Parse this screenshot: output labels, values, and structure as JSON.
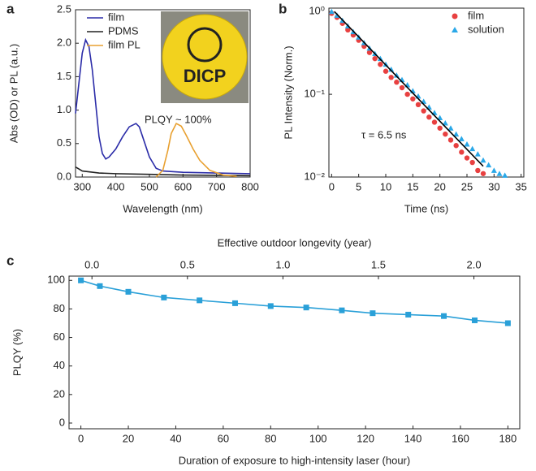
{
  "chart_data": [
    {
      "type": "line",
      "panel_label": "a",
      "x_label": "Wavelength (nm)",
      "y_label": "Abs (OD) or PL (a.u.)",
      "annotation": "PLQY ~ 100%",
      "inset_text": "DICP",
      "legend": "upper left",
      "xlim": [
        280,
        800
      ],
      "xticks": [
        300,
        400,
        500,
        600,
        700,
        800
      ],
      "ylim": [
        0,
        2.5
      ],
      "yticks": [
        {
          "value": 0,
          "label": "0.0"
        },
        0.5,
        {
          "value": 1,
          "label": "1.0"
        },
        1.5,
        {
          "value": 2,
          "label": "2.0"
        },
        2.5
      ],
      "series": [
        {
          "name": "film",
          "color": "#2b2ca8",
          "x": [
            280,
            290,
            300,
            310,
            320,
            330,
            340,
            350,
            360,
            370,
            380,
            400,
            420,
            440,
            460,
            470,
            480,
            500,
            520,
            540,
            600,
            700,
            800
          ],
          "values": [
            0.95,
            1.4,
            1.85,
            2.05,
            1.95,
            1.6,
            1.1,
            0.6,
            0.35,
            0.27,
            0.3,
            0.42,
            0.6,
            0.75,
            0.8,
            0.75,
            0.6,
            0.3,
            0.13,
            0.09,
            0.07,
            0.06,
            0.05
          ]
        },
        {
          "name": "PDMS",
          "color": "#222222",
          "x": [
            280,
            290,
            300,
            350,
            400,
            500,
            600,
            800
          ],
          "values": [
            0.15,
            0.12,
            0.09,
            0.06,
            0.05,
            0.04,
            0.03,
            0.02
          ]
        },
        {
          "name": "film PL",
          "color": "#e8a030",
          "x": [
            520,
            540,
            555,
            565,
            580,
            595,
            610,
            630,
            650,
            680,
            720,
            760
          ],
          "values": [
            0,
            0.1,
            0.4,
            0.65,
            0.8,
            0.76,
            0.62,
            0.42,
            0.25,
            0.1,
            0.03,
            0.01
          ]
        }
      ]
    },
    {
      "type": "scatter",
      "panel_label": "b",
      "x_label": "Time (ns)",
      "y_label": "PL Intensity (Norm.)",
      "annotation": "τ = 6.5 ns",
      "legend": "upper right",
      "log_y": true,
      "xlim": [
        -0.5,
        35.5
      ],
      "xticks": [
        0,
        5,
        10,
        15,
        20,
        25,
        30,
        35
      ],
      "ylim": [
        0.01,
        1.1
      ],
      "yticks": [
        {
          "value": 1,
          "label": "10⁰"
        },
        {
          "value": 0.1,
          "label": "10⁻¹"
        },
        {
          "value": 0.01,
          "label": "10⁻²"
        }
      ],
      "series": [
        {
          "name": "film",
          "color": "#e84040",
          "marker": "circle",
          "x": [
            0,
            1,
            2,
            3,
            4,
            5,
            6,
            7,
            8,
            9,
            10,
            11,
            12,
            13,
            14,
            15,
            16,
            17,
            18,
            19,
            20,
            21,
            22,
            23,
            24,
            25,
            26,
            27,
            28
          ],
          "values": [
            0.95,
            0.85,
            0.72,
            0.6,
            0.52,
            0.45,
            0.38,
            0.32,
            0.27,
            0.23,
            0.19,
            0.16,
            0.14,
            0.12,
            0.1,
            0.088,
            0.075,
            0.063,
            0.053,
            0.046,
            0.039,
            0.033,
            0.028,
            0.024,
            0.02,
            0.017,
            0.015,
            0.012,
            0.011
          ]
        },
        {
          "name": "solution",
          "color": "#2aa8e8",
          "marker": "triangle",
          "x": [
            0,
            1,
            2,
            3,
            4,
            5,
            6,
            7,
            8,
            9,
            10,
            11,
            12,
            13,
            14,
            15,
            16,
            17,
            18,
            19,
            20,
            21,
            22,
            23,
            24,
            25,
            26,
            27,
            28,
            29,
            30,
            31,
            32
          ],
          "values": [
            1,
            0.9,
            0.78,
            0.67,
            0.57,
            0.49,
            0.42,
            0.36,
            0.31,
            0.27,
            0.23,
            0.2,
            0.17,
            0.15,
            0.13,
            0.11,
            0.095,
            0.082,
            0.07,
            0.06,
            0.052,
            0.045,
            0.039,
            0.033,
            0.029,
            0.025,
            0.022,
            0.019,
            0.016,
            0.014,
            0.012,
            0.011,
            0.0105
          ]
        }
      ],
      "fit": {
        "color": "#000000",
        "x": [
          0.5,
          28
        ],
        "values": [
          1,
          0.0135
        ]
      }
    },
    {
      "type": "line",
      "panel_label": "c",
      "x_label": "Duration of exposure to high-intensity laser (hour)",
      "x2_label": "Effective outdoor longevity (year)",
      "y_label": "PLQY (%)",
      "xlim": [
        -5,
        185
      ],
      "xticks": [
        0,
        20,
        40,
        60,
        80,
        100,
        120,
        140,
        160,
        180
      ],
      "x2lim": [
        -0.12,
        2.24
      ],
      "x2ticks": [
        {
          "value": 0,
          "label": "0.0"
        },
        0.5,
        {
          "value": 1,
          "label": "1.0"
        },
        1.5,
        {
          "value": 2,
          "label": "2.0"
        }
      ],
      "ylim": [
        -4,
        103
      ],
      "yticks": [
        0,
        20,
        40,
        60,
        80,
        100
      ],
      "series": [
        {
          "color": "#2aa0d8",
          "marker": "square",
          "x": [
            0,
            8,
            20,
            35,
            50,
            65,
            80,
            95,
            110,
            123,
            138,
            153,
            166,
            180
          ],
          "values": [
            100,
            96,
            92,
            88,
            86,
            84,
            82,
            81,
            79,
            77,
            76,
            75,
            72,
            70
          ]
        }
      ]
    }
  ]
}
